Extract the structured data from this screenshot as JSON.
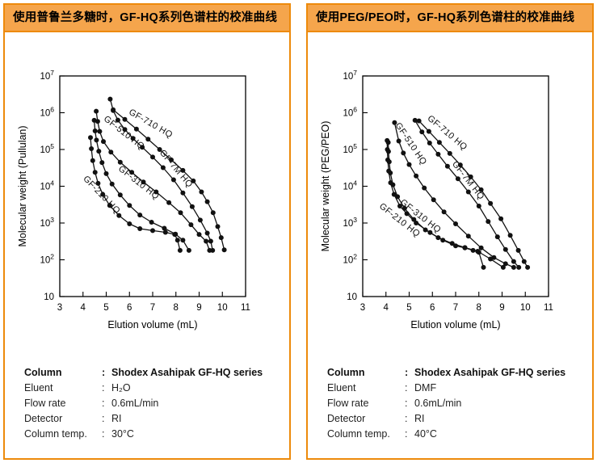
{
  "misc": {
    "colon": ":"
  },
  "colors": {
    "panel_border": "#ED8A0B",
    "header_fill": "#F5A54C",
    "curve_color": "#111111",
    "axis_color": "#000000",
    "text_color": "#111111"
  },
  "panels": [
    {
      "header": "使用普鲁兰多糖时，GF-HQ系列色谱柱的校准曲线",
      "spec": {
        "rows": [
          {
            "label": "Column",
            "value": "Shodex Asahipak GF-HQ series",
            "bold": true
          },
          {
            "label": "Eluent",
            "value": "H₂O",
            "bold": false
          },
          {
            "label": "Flow rate",
            "value": "0.6mL/min",
            "bold": false
          },
          {
            "label": "Detector",
            "value": "RI",
            "bold": false
          },
          {
            "label": "Column temp.",
            "value": "30°C",
            "bold": false
          }
        ]
      }
    },
    {
      "header": "使用PEG/PEO时，GF-HQ系列色谱柱的校准曲线",
      "spec": {
        "rows": [
          {
            "label": "Column",
            "value": "Shodex Asahipak GF-HQ series",
            "bold": true
          },
          {
            "label": "Eluent",
            "value": "DMF",
            "bold": false
          },
          {
            "label": "Flow rate",
            "value": "0.6mL/min",
            "bold": false
          },
          {
            "label": "Detector",
            "value": "RI",
            "bold": false
          },
          {
            "label": "Column temp.",
            "value": "40°C",
            "bold": false
          }
        ]
      }
    }
  ],
  "chart_data": [
    {
      "type": "line",
      "xlabel": "Elution volume (mL)",
      "ylabel": "Molecular weight (Pullulan)",
      "xlim": [
        3,
        11
      ],
      "xticks": [
        3,
        4,
        5,
        6,
        7,
        8,
        9,
        10,
        11
      ],
      "y_log_decades": [
        1,
        2,
        3,
        4,
        5,
        6,
        7
      ],
      "grid": false,
      "legend": "labels-on-curves",
      "series": [
        {
          "name": "GF-710 HQ",
          "label": {
            "x": 6.86,
            "mw": 440000,
            "angle": 30
          },
          "points": [
            [
              5.17,
              2350000
            ],
            [
              5.3,
              1150000
            ],
            [
              5.5,
              630000
            ],
            [
              5.8,
              350000
            ],
            [
              6.15,
              200000
            ],
            [
              6.55,
              115000
            ],
            [
              7.0,
              62000
            ],
            [
              7.45,
              32000
            ],
            [
              7.9,
              15000
            ],
            [
              8.3,
              6600
            ],
            [
              8.7,
              2800
            ],
            [
              9.05,
              1200
            ],
            [
              9.35,
              530
            ],
            [
              9.5,
              320
            ],
            [
              9.58,
              180
            ]
          ]
        },
        {
          "name": "GF-7M HQ",
          "label": {
            "x": 7.92,
            "mw": 27000,
            "angle": 50
          },
          "points": [
            [
              5.3,
              1200000
            ],
            [
              5.8,
              660000
            ],
            [
              6.3,
              360000
            ],
            [
              6.8,
              190000
            ],
            [
              7.3,
              100000
            ],
            [
              7.8,
              52000
            ],
            [
              8.3,
              27000
            ],
            [
              8.75,
              14000
            ],
            [
              9.1,
              7000
            ],
            [
              9.35,
              3800
            ],
            [
              9.6,
              1900
            ],
            [
              9.8,
              800
            ],
            [
              9.95,
              400
            ],
            [
              10.08,
              185
            ]
          ]
        },
        {
          "name": "GF-510 HQ",
          "label": {
            "x": 5.7,
            "mw": 250000,
            "angle": 38
          },
          "points": [
            [
              4.57,
              1100000
            ],
            [
              4.63,
              580000
            ],
            [
              4.72,
              310000
            ],
            [
              4.88,
              165000
            ],
            [
              5.2,
              85000
            ],
            [
              5.6,
              45000
            ],
            [
              6.1,
              24000
            ],
            [
              6.6,
              13000
            ],
            [
              7.15,
              7000
            ],
            [
              7.7,
              3600
            ],
            [
              8.2,
              1900
            ],
            [
              8.65,
              900
            ],
            [
              9.0,
              490
            ],
            [
              9.3,
              320
            ],
            [
              9.45,
              180
            ]
          ]
        },
        {
          "name": "GF-310 HQ",
          "label": {
            "x": 6.33,
            "mw": 11000,
            "angle": 38
          },
          "points": [
            [
              4.48,
              620000
            ],
            [
              4.52,
              320000
            ],
            [
              4.58,
              180000
            ],
            [
              4.68,
              90000
            ],
            [
              4.82,
              44000
            ],
            [
              5.0,
              22000
            ],
            [
              5.25,
              11500
            ],
            [
              5.6,
              5800
            ],
            [
              6.0,
              3000
            ],
            [
              6.45,
              1650
            ],
            [
              6.95,
              1050
            ],
            [
              7.5,
              720
            ],
            [
              7.98,
              500
            ],
            [
              8.3,
              340
            ],
            [
              8.56,
              180
            ]
          ]
        },
        {
          "name": "GF-210 HQ",
          "label": {
            "x": 4.72,
            "mw": 5200,
            "angle": 46
          },
          "points": [
            [
              4.32,
              210000
            ],
            [
              4.36,
              105000
            ],
            [
              4.42,
              50000
            ],
            [
              4.52,
              24000
            ],
            [
              4.65,
              12000
            ],
            [
              4.85,
              6000
            ],
            [
              5.15,
              3000
            ],
            [
              5.55,
              1600
            ],
            [
              6.0,
              950
            ],
            [
              6.45,
              700
            ],
            [
              7.0,
              620
            ],
            [
              7.55,
              560
            ],
            [
              7.95,
              490
            ],
            [
              8.07,
              340
            ],
            [
              8.18,
              180
            ]
          ]
        }
      ]
    },
    {
      "type": "line",
      "xlabel": "Elution volume (mL)",
      "ylabel": "Molecular weight (PEG/PEO)",
      "xlim": [
        3,
        11
      ],
      "xticks": [
        3,
        4,
        5,
        6,
        7,
        8,
        9,
        10,
        11
      ],
      "y_log_decades": [
        1,
        2,
        3,
        4,
        5,
        6,
        7
      ],
      "grid": false,
      "legend": "labels-on-curves",
      "series": [
        {
          "name": "GF-710 HQ",
          "label": {
            "x": 6.57,
            "mw": 250000,
            "angle": 40
          },
          "points": [
            [
              5.25,
              620000
            ],
            [
              5.55,
              300000
            ],
            [
              5.88,
              150000
            ],
            [
              6.25,
              74000
            ],
            [
              6.65,
              35000
            ],
            [
              7.1,
              16000
            ],
            [
              7.55,
              7000
            ],
            [
              8.0,
              2900
            ],
            [
              8.4,
              1100
            ],
            [
              8.8,
              420
            ],
            [
              9.15,
              190
            ],
            [
              9.5,
              90
            ],
            [
              9.72,
              62
            ]
          ]
        },
        {
          "name": "GF-7M HQ",
          "label": {
            "x": 7.45,
            "mw": 13000,
            "angle": 52
          },
          "points": [
            [
              5.42,
              600000
            ],
            [
              5.85,
              310000
            ],
            [
              6.3,
              155000
            ],
            [
              6.75,
              78000
            ],
            [
              7.2,
              38000
            ],
            [
              7.65,
              18000
            ],
            [
              8.1,
              8000
            ],
            [
              8.5,
              3400
            ],
            [
              8.95,
              1300
            ],
            [
              9.35,
              460
            ],
            [
              9.7,
              180
            ],
            [
              9.95,
              90
            ],
            [
              10.1,
              62
            ]
          ]
        },
        {
          "name": "GF-510 HQ",
          "label": {
            "x": 4.98,
            "mw": 130000,
            "angle": 56
          },
          "points": [
            [
              4.37,
              540000
            ],
            [
              4.55,
              170000
            ],
            [
              4.75,
              80000
            ],
            [
              5.0,
              39000
            ],
            [
              5.3,
              19000
            ],
            [
              5.65,
              9000
            ],
            [
              6.05,
              4300
            ],
            [
              6.5,
              2000
            ],
            [
              7.0,
              950
            ],
            [
              7.55,
              440
            ],
            [
              8.1,
              210
            ],
            [
              8.65,
              115
            ],
            [
              9.15,
              78
            ],
            [
              9.5,
              62
            ]
          ]
        },
        {
          "name": "GF-310 HQ",
          "label": {
            "x": 5.42,
            "mw": 1350,
            "angle": 38
          },
          "points": [
            [
              4.1,
              155000
            ],
            [
              4.11,
              88000
            ],
            [
              4.14,
              46000
            ],
            [
              4.19,
              23000
            ],
            [
              4.3,
              11000
            ],
            [
              4.5,
              5200
            ],
            [
              4.8,
              2500
            ],
            [
              5.2,
              1250
            ],
            [
              5.7,
              650
            ],
            [
              6.25,
              400
            ],
            [
              6.85,
              280
            ],
            [
              7.4,
              215
            ],
            [
              7.95,
              170
            ],
            [
              8.5,
              105
            ],
            [
              9.05,
              62
            ]
          ]
        },
        {
          "name": "GF-210 HQ",
          "label": {
            "x": 4.52,
            "mw": 1050,
            "angle": 38
          },
          "points": [
            [
              4.05,
              175000
            ],
            [
              4.06,
              100000
            ],
            [
              4.08,
              52000
            ],
            [
              4.12,
              26000
            ],
            [
              4.2,
              12500
            ],
            [
              4.35,
              6000
            ],
            [
              4.6,
              2900
            ],
            [
              4.9,
              1800
            ],
            [
              5.3,
              1000
            ],
            [
              5.9,
              550
            ],
            [
              6.45,
              340
            ],
            [
              7.0,
              240
            ],
            [
              7.4,
              210
            ],
            [
              7.75,
              180
            ],
            [
              8.0,
              160
            ],
            [
              8.2,
              62
            ]
          ]
        }
      ]
    }
  ]
}
